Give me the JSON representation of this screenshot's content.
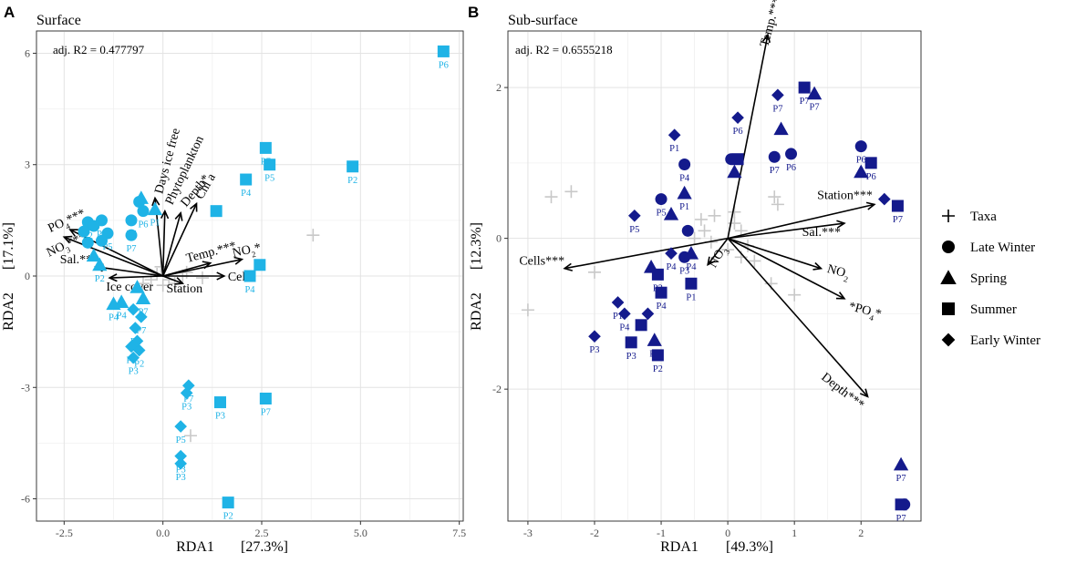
{
  "chart_data": [
    {
      "panel": "A",
      "type": "scatter",
      "title": "Surface",
      "annotation": "adj. R2 = 0.477797",
      "xlabel": "RDA1",
      "xlabel_pct": "[27.3%]",
      "ylabel": "RDA2",
      "ylabel_pct": "[17.1%]",
      "xlim": [
        -3.2,
        7.6
      ],
      "ylim": [
        -6.6,
        6.6
      ],
      "xticks": [
        -2.5,
        0,
        2.5,
        5,
        7.5
      ],
      "xtick_labels": [
        "-2.5",
        "0.0",
        "2.5",
        "5.0",
        "7.5"
      ],
      "yticks": [
        -6,
        -3,
        0,
        3,
        6
      ],
      "ytick_labels": [
        "-6",
        "-3",
        "0",
        "3",
        "6"
      ],
      "grid": true,
      "point_color": "#1fb3e6",
      "taxa_color": "#c8c8c8",
      "vector_color": "#000000",
      "vectors": [
        {
          "label": "PO4***",
          "x": -2.35,
          "y": 1.25
        },
        {
          "label": "NO3***",
          "x": -2.5,
          "y": 1.05
        },
        {
          "label": "Sal.***",
          "x": -1.7,
          "y": 0.25
        },
        {
          "label": "Ice cover",
          "x": -1.35,
          "y": -0.05
        },
        {
          "label": "Days ice free",
          "x": -0.2,
          "y": 2.1
        },
        {
          "label": "Phytoplankton",
          "x": 0.05,
          "y": 1.75
        },
        {
          "label": "Depth*",
          "x": 0.45,
          "y": 1.7
        },
        {
          "label": "Chl a",
          "x": 0.85,
          "y": 1.95
        },
        {
          "label": "Temp.***",
          "x": 1.2,
          "y": 0.35
        },
        {
          "label": "NO2*",
          "x": 2.0,
          "y": 0.45
        },
        {
          "label": "Cells",
          "x": 1.55,
          "y": 0.0
        },
        {
          "label": "Station",
          "x": 0.5,
          "y": -0.2
        }
      ],
      "taxa": [
        [
          3.8,
          1.1
        ],
        [
          0.7,
          -4.3
        ],
        [
          0.5,
          0.0
        ],
        [
          0.15,
          -0.1
        ],
        [
          -0.15,
          0.05
        ],
        [
          0.3,
          -0.2
        ],
        [
          -0.3,
          -0.1
        ],
        [
          0.6,
          0.1
        ],
        [
          0.0,
          -0.25
        ],
        [
          -0.05,
          0.25
        ],
        [
          1.0,
          -0.05
        ],
        [
          -0.5,
          -0.2
        ]
      ],
      "points": [
        {
          "season": "Summer",
          "label": "P6",
          "x": 7.1,
          "y": 6.05
        },
        {
          "season": "Summer",
          "label": "P2",
          "x": 4.8,
          "y": 2.95
        },
        {
          "season": "Summer",
          "label": "P5",
          "x": 2.7,
          "y": 3.0
        },
        {
          "season": "Summer",
          "label": "P7",
          "x": 2.6,
          "y": 3.45
        },
        {
          "season": "Summer",
          "label": "P4",
          "x": 2.1,
          "y": 2.6
        },
        {
          "season": "Summer",
          "label": "P4",
          "x": 2.2,
          "y": 0.0
        },
        {
          "season": "Summer",
          "label": "",
          "x": 2.45,
          "y": 0.3
        },
        {
          "season": "Summer",
          "label": "P3",
          "x": 1.45,
          "y": -3.4
        },
        {
          "season": "Summer",
          "label": "P7",
          "x": 2.6,
          "y": -3.3
        },
        {
          "season": "Summer",
          "label": "P2",
          "x": 1.65,
          "y": -6.1
        },
        {
          "season": "Summer",
          "label": "",
          "x": 1.35,
          "y": 1.75
        },
        {
          "season": "Late Winter",
          "label": "P6",
          "x": -0.5,
          "y": 1.75
        },
        {
          "season": "Late Winter",
          "label": "",
          "x": -0.6,
          "y": 2.0
        },
        {
          "season": "Late Winter",
          "label": "P7",
          "x": -0.8,
          "y": 1.5
        },
        {
          "season": "Late Winter",
          "label": "P7",
          "x": -0.8,
          "y": 1.1
        },
        {
          "season": "Late Winter",
          "label": "P7",
          "x": -1.55,
          "y": 1.5
        },
        {
          "season": "Late Winter",
          "label": "P2",
          "x": -1.9,
          "y": 1.45
        },
        {
          "season": "Late Winter",
          "label": "P5",
          "x": -1.4,
          "y": 1.15
        },
        {
          "season": "Late Winter",
          "label": "",
          "x": -1.75,
          "y": 1.35
        },
        {
          "season": "Late Winter",
          "label": "",
          "x": -2.0,
          "y": 1.2
        },
        {
          "season": "Late Winter",
          "label": "",
          "x": -1.55,
          "y": 0.95
        },
        {
          "season": "Late Winter",
          "label": "",
          "x": -1.9,
          "y": 0.9
        },
        {
          "season": "Spring",
          "label": "P1",
          "x": -0.2,
          "y": 1.8
        },
        {
          "season": "Spring",
          "label": "",
          "x": -0.55,
          "y": 2.1
        },
        {
          "season": "Spring",
          "label": "P2",
          "x": -1.6,
          "y": 0.3
        },
        {
          "season": "Spring",
          "label": "",
          "x": -1.75,
          "y": 0.55
        },
        {
          "season": "Spring",
          "label": "P4",
          "x": -1.05,
          "y": -0.7
        },
        {
          "season": "Spring",
          "label": "P4",
          "x": -1.25,
          "y": -0.75
        },
        {
          "season": "Spring",
          "label": "P7",
          "x": -0.5,
          "y": -0.6
        },
        {
          "season": "Spring",
          "label": "",
          "x": -0.65,
          "y": -0.3
        },
        {
          "season": "Early Winter",
          "label": "P7",
          "x": -0.55,
          "y": -1.1
        },
        {
          "season": "Early Winter",
          "label": "P6",
          "x": -0.7,
          "y": -1.4
        },
        {
          "season": "Early Winter",
          "label": "",
          "x": -0.75,
          "y": -0.9
        },
        {
          "season": "Early Winter",
          "label": "P2",
          "x": -0.8,
          "y": -1.9
        },
        {
          "season": "Early Winter",
          "label": "P2",
          "x": -0.6,
          "y": -2.0
        },
        {
          "season": "Early Winter",
          "label": "P3",
          "x": -0.75,
          "y": -2.2
        },
        {
          "season": "Early Winter",
          "label": "",
          "x": -0.65,
          "y": -1.75
        },
        {
          "season": "Early Winter",
          "label": "P7",
          "x": 0.65,
          "y": -2.95
        },
        {
          "season": "Early Winter",
          "label": "P3",
          "x": 0.6,
          "y": -3.15
        },
        {
          "season": "Early Winter",
          "label": "P5",
          "x": 0.45,
          "y": -4.05
        },
        {
          "season": "Early Winter",
          "label": "P3",
          "x": 0.45,
          "y": -4.85
        },
        {
          "season": "Early Winter",
          "label": "P3",
          "x": 0.45,
          "y": -5.05
        }
      ]
    },
    {
      "panel": "B",
      "type": "scatter",
      "title": "Sub-surface",
      "annotation": "adj. R2 = 0.6555218",
      "xlabel": "RDA1",
      "xlabel_pct": "[49.3%]",
      "ylabel": "RDA2",
      "ylabel_pct": "[12.3%]",
      "xlim": [
        -3.3,
        2.9
      ],
      "ylim": [
        -3.75,
        2.75
      ],
      "xticks": [
        -3,
        -2,
        -1,
        0,
        1,
        2
      ],
      "xtick_labels": [
        "-3",
        "-2",
        "-1",
        "0",
        "1",
        "2"
      ],
      "yticks": [
        -2,
        0,
        2
      ],
      "ytick_labels": [
        "-2",
        "0",
        "2"
      ],
      "grid": true,
      "point_color": "#141a8c",
      "taxa_color": "#c8c8c8",
      "vector_color": "#000000",
      "vectors": [
        {
          "label": "Temp.***",
          "x": 0.6,
          "y": 2.7
        },
        {
          "label": "Station***",
          "x": 2.2,
          "y": 0.45
        },
        {
          "label": "Sal.***",
          "x": 1.75,
          "y": 0.2
        },
        {
          "label": "NO2",
          "x": 1.4,
          "y": -0.4
        },
        {
          "label": "*PO4*",
          "x": 1.75,
          "y": -0.8
        },
        {
          "label": "Depth***",
          "x": 2.1,
          "y": -2.1
        },
        {
          "label": "Cells***",
          "x": -2.45,
          "y": -0.4
        },
        {
          "label": "NO3",
          "x": -0.3,
          "y": -0.35
        }
      ],
      "taxa": [
        [
          -2.65,
          0.55
        ],
        [
          -2.35,
          0.62
        ],
        [
          -2.0,
          -0.45
        ],
        [
          -3.0,
          -0.95
        ],
        [
          0.7,
          0.55
        ],
        [
          0.75,
          0.45
        ],
        [
          1.0,
          -0.75
        ],
        [
          0.65,
          -0.6
        ],
        [
          0.4,
          -0.3
        ],
        [
          0.3,
          -0.1
        ],
        [
          -0.2,
          0.3
        ],
        [
          -0.4,
          0.25
        ],
        [
          0.1,
          0.35
        ],
        [
          0.2,
          0.1
        ],
        [
          -0.25,
          -0.05
        ],
        [
          -0.5,
          0.0
        ],
        [
          0.0,
          -0.15
        ],
        [
          0.2,
          -0.25
        ],
        [
          -0.35,
          0.1
        ],
        [
          0.1,
          0.2
        ]
      ],
      "points": [
        {
          "season": "Early Winter",
          "label": "P1",
          "x": -0.8,
          "y": 1.37
        },
        {
          "season": "Early Winter",
          "label": "P7",
          "x": 0.75,
          "y": 1.9
        },
        {
          "season": "Early Winter",
          "label": "P6",
          "x": 0.15,
          "y": 1.6
        },
        {
          "season": "Early Winter",
          "label": "P5",
          "x": -1.4,
          "y": 0.3
        },
        {
          "season": "Early Winter",
          "label": "P4",
          "x": -0.85,
          "y": -0.2
        },
        {
          "season": "Early Winter",
          "label": "P1",
          "x": -1.65,
          "y": -0.85
        },
        {
          "season": "Early Winter",
          "label": "P4",
          "x": -1.55,
          "y": -1.0
        },
        {
          "season": "Early Winter",
          "label": "",
          "x": -1.2,
          "y": -1.0
        },
        {
          "season": "Early Winter",
          "label": "P3",
          "x": -2.0,
          "y": -1.3
        },
        {
          "season": "Early Winter",
          "label": "",
          "x": 2.35,
          "y": 0.52
        },
        {
          "season": "Late Winter",
          "label": "P4",
          "x": -0.65,
          "y": 0.98
        },
        {
          "season": "Late Winter",
          "label": "P5",
          "x": -1.0,
          "y": 0.52
        },
        {
          "season": "Late Winter",
          "label": "",
          "x": -0.6,
          "y": 0.1
        },
        {
          "season": "Late Winter",
          "label": "P7",
          "x": 0.7,
          "y": 1.08
        },
        {
          "season": "Late Winter",
          "label": "P6",
          "x": 0.95,
          "y": 1.12
        },
        {
          "season": "Late Winter",
          "label": "",
          "x": 0.05,
          "y": 1.05
        },
        {
          "season": "Late Winter",
          "label": "P6",
          "x": 2.0,
          "y": 1.22
        },
        {
          "season": "Late Winter",
          "label": "",
          "x": 2.65,
          "y": -3.53
        },
        {
          "season": "Late Winter",
          "label": "P3",
          "x": -0.65,
          "y": -0.25
        },
        {
          "season": "Spring",
          "label": "P1",
          "x": -0.65,
          "y": 0.6
        },
        {
          "season": "Spring",
          "label": "P7",
          "x": 1.3,
          "y": 1.92
        },
        {
          "season": "Spring",
          "label": "",
          "x": 0.8,
          "y": 1.45
        },
        {
          "season": "Spring",
          "label": "",
          "x": 0.1,
          "y": 0.88
        },
        {
          "season": "Spring",
          "label": "",
          "x": -0.85,
          "y": 0.32
        },
        {
          "season": "Spring",
          "label": "",
          "x": -1.15,
          "y": -0.38
        },
        {
          "season": "Spring",
          "label": "P4",
          "x": -1.1,
          "y": -1.35
        },
        {
          "season": "Spring",
          "label": "",
          "x": 2.0,
          "y": 0.88
        },
        {
          "season": "Spring",
          "label": "P7",
          "x": 2.6,
          "y": -3.0
        },
        {
          "season": "Spring",
          "label": "P4",
          "x": -0.55,
          "y": -0.2
        },
        {
          "season": "Summer",
          "label": "P7",
          "x": 1.15,
          "y": 2.0
        },
        {
          "season": "Summer",
          "label": "",
          "x": 0.15,
          "y": 1.05
        },
        {
          "season": "Summer",
          "label": "P6",
          "x": 2.15,
          "y": 1.0
        },
        {
          "season": "Summer",
          "label": "P7",
          "x": 2.55,
          "y": 0.43
        },
        {
          "season": "Summer",
          "label": "P1",
          "x": -0.55,
          "y": -0.6
        },
        {
          "season": "Summer",
          "label": "P4",
          "x": -1.0,
          "y": -0.72
        },
        {
          "season": "Summer",
          "label": "P3",
          "x": -1.05,
          "y": -0.48
        },
        {
          "season": "Summer",
          "label": "",
          "x": -1.3,
          "y": -1.15
        },
        {
          "season": "Summer",
          "label": "P3",
          "x": -1.45,
          "y": -1.38
        },
        {
          "season": "Summer",
          "label": "P2",
          "x": -1.05,
          "y": -1.55
        },
        {
          "season": "Summer",
          "label": "P7",
          "x": 2.6,
          "y": -3.53
        }
      ]
    }
  ],
  "legend": {
    "items": [
      {
        "label": "Taxa",
        "shape": "plus"
      },
      {
        "label": "Late Winter",
        "shape": "circle"
      },
      {
        "label": "Spring",
        "shape": "triangle"
      },
      {
        "label": "Summer",
        "shape": "square"
      },
      {
        "label": "Early Winter",
        "shape": "diamond"
      }
    ]
  }
}
